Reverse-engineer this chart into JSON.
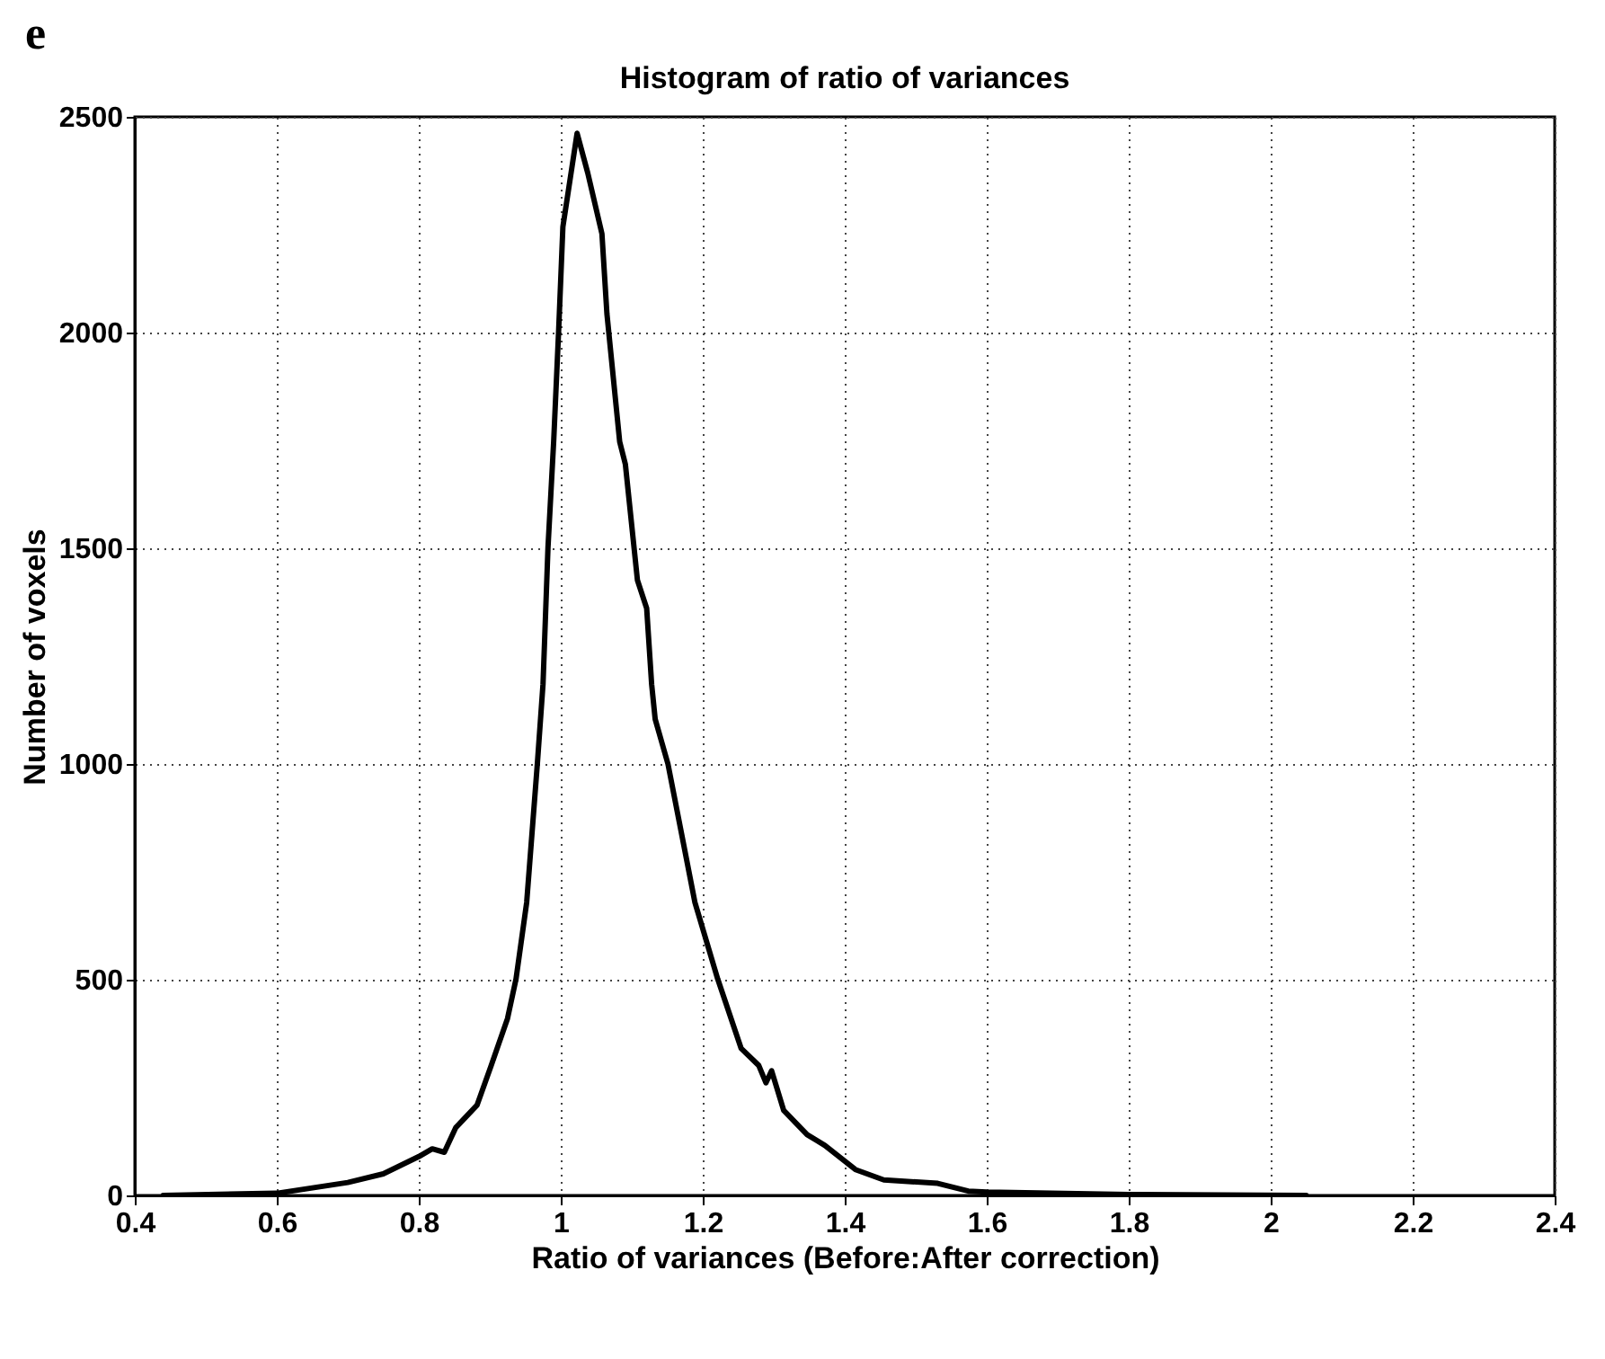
{
  "chart_data": {
    "type": "line",
    "title": "Histogram of ratio of variances",
    "xlabel": "Ratio of variances (Before:After correction)",
    "ylabel": "Number of voxels",
    "annotations": [
      "e"
    ],
    "x": [
      0.44,
      0.6,
      0.7,
      0.75,
      0.8,
      0.819,
      0.836,
      0.852,
      0.882,
      0.902,
      0.925,
      0.937,
      0.952,
      0.967,
      0.975,
      0.982,
      0.99,
      0.997,
      1.003,
      1.023,
      1.038,
      1.058,
      1.065,
      1.083,
      1.091,
      1.108,
      1.121,
      1.128,
      1.133,
      1.151,
      1.189,
      1.221,
      1.254,
      1.279,
      1.289,
      1.297,
      1.314,
      1.347,
      1.372,
      1.415,
      1.455,
      1.531,
      1.574,
      1.6,
      1.8,
      2.05
    ],
    "series": [
      {
        "color": "#000000",
        "values": [
          0,
          5,
          30,
          50,
          90,
          108,
          100,
          157,
          209,
          301,
          410,
          502,
          679,
          1000,
          1185,
          1502,
          1747,
          2004,
          2245,
          2462,
          2370,
          2229,
          2044,
          1747,
          1695,
          1426,
          1361,
          1185,
          1104,
          1000,
          679,
          502,
          341,
          301,
          261,
          289,
          197,
          141,
          116,
          60,
          36,
          28,
          10,
          8,
          2,
          0
        ]
      }
    ],
    "xlim": [
      0.4,
      2.4
    ],
    "xticks": [
      0.4,
      0.6,
      0.8,
      1,
      1.2,
      1.4,
      1.6,
      1.8,
      2,
      2.2,
      2.4
    ],
    "ylim": [
      0,
      2500
    ],
    "yticks": [
      0,
      500,
      1000,
      1500,
      2000,
      2500
    ],
    "grid": true,
    "marker": "none",
    "line_style": "solid"
  }
}
